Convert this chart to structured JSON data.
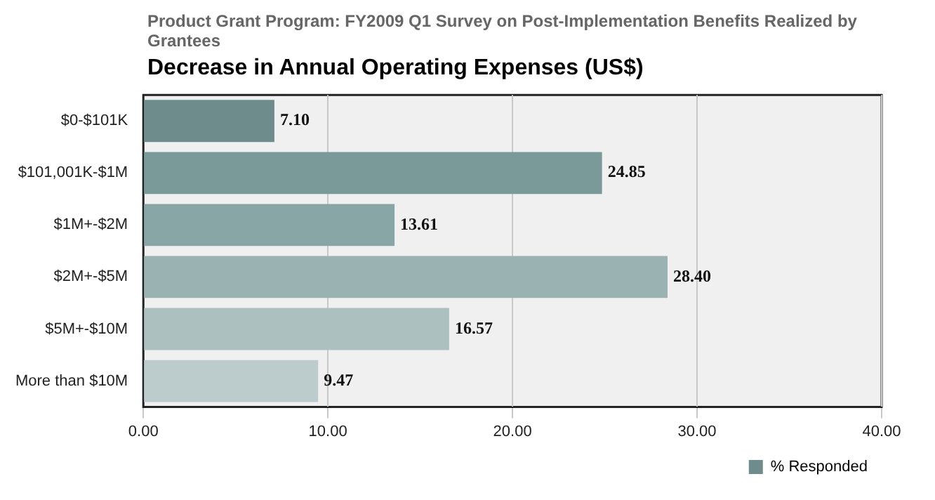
{
  "chart_data": {
    "type": "bar",
    "orientation": "horizontal",
    "subtitle": "Product Grant Program: FY2009 Q1 Survey on Post-Implementation Benefits Realized by Grantees",
    "title": "Decrease in Annual Operating Expenses (US$)",
    "categories": [
      "$0-$101K",
      "$101,001K-$1M",
      "$1M+-$2M",
      "$2M+-$5M",
      "$5M+-$10M",
      "More than $10M"
    ],
    "series": [
      {
        "name": "% Responded",
        "color": "#6e8c8c",
        "colors": [
          "#6e8c8c",
          "#7a9a9a",
          "#88a6a6",
          "#9bb2b2",
          "#adc0c0",
          "#bccccc"
        ],
        "values": [
          7.1,
          24.85,
          13.61,
          28.4,
          16.57,
          9.47
        ],
        "value_labels": [
          "7.10",
          "24.85",
          "13.61",
          "28.40",
          "16.57",
          "9.47"
        ]
      }
    ],
    "xlim": [
      0,
      40
    ],
    "xticks": [
      {
        "value": 0,
        "label": "0.00"
      },
      {
        "value": 10,
        "label": "10.00"
      },
      {
        "value": 20,
        "label": "20.00"
      },
      {
        "value": 30,
        "label": "30.00"
      },
      {
        "value": 40,
        "label": "40.00"
      }
    ],
    "grid": "x",
    "legend": "bottom right"
  }
}
